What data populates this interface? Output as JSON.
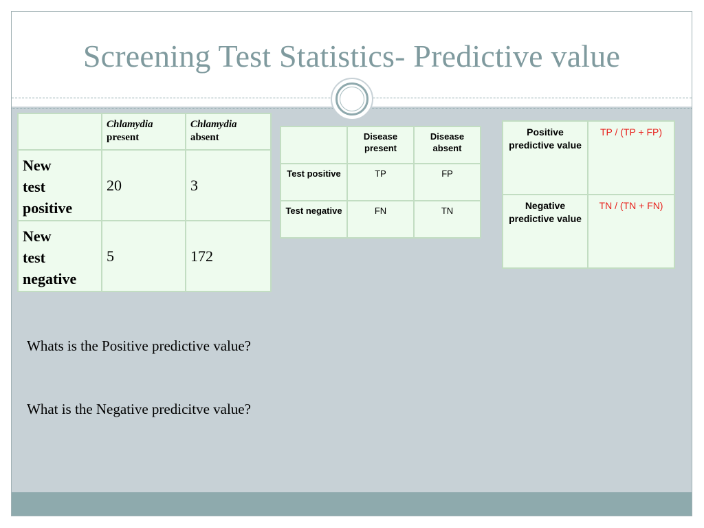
{
  "slide": {
    "title": "Screening Test Statistics- Predictive value"
  },
  "table1": {
    "header": {
      "col1_italic": "Chlamydia",
      "col1_rest": "present",
      "col2_italic": "Chlamydia",
      "col2_rest": "absent"
    },
    "rows": [
      {
        "label_line1": "New",
        "label_line2": "test",
        "label_line3": "positive",
        "present": "20",
        "absent": "3"
      },
      {
        "label_line1": "New",
        "label_line2": "test",
        "label_line3": "negative",
        "present": "5",
        "absent": "172"
      }
    ]
  },
  "table2": {
    "header": [
      "Disease present",
      "Disease absent"
    ],
    "rows": [
      {
        "label": "Test positive",
        "present": "TP",
        "absent": "FP"
      },
      {
        "label": "Test negative",
        "present": "FN",
        "absent": "TN"
      }
    ]
  },
  "table3": {
    "rows": [
      {
        "label": "Positive predictive value",
        "formula": "TP / (TP + FP)"
      },
      {
        "label": "Negative predictive value",
        "formula": "TN / (TN + FN)"
      }
    ],
    "formula_color": "#e8201c"
  },
  "questions": {
    "q1": "Whats is the Positive predictive value?",
    "q2": "What is the Negative predicitve value?"
  },
  "colors": {
    "title": "#7f9a9e",
    "background": "#c7d1d6",
    "cell_fill": "#eefbee",
    "footer": "#8eaaad"
  }
}
